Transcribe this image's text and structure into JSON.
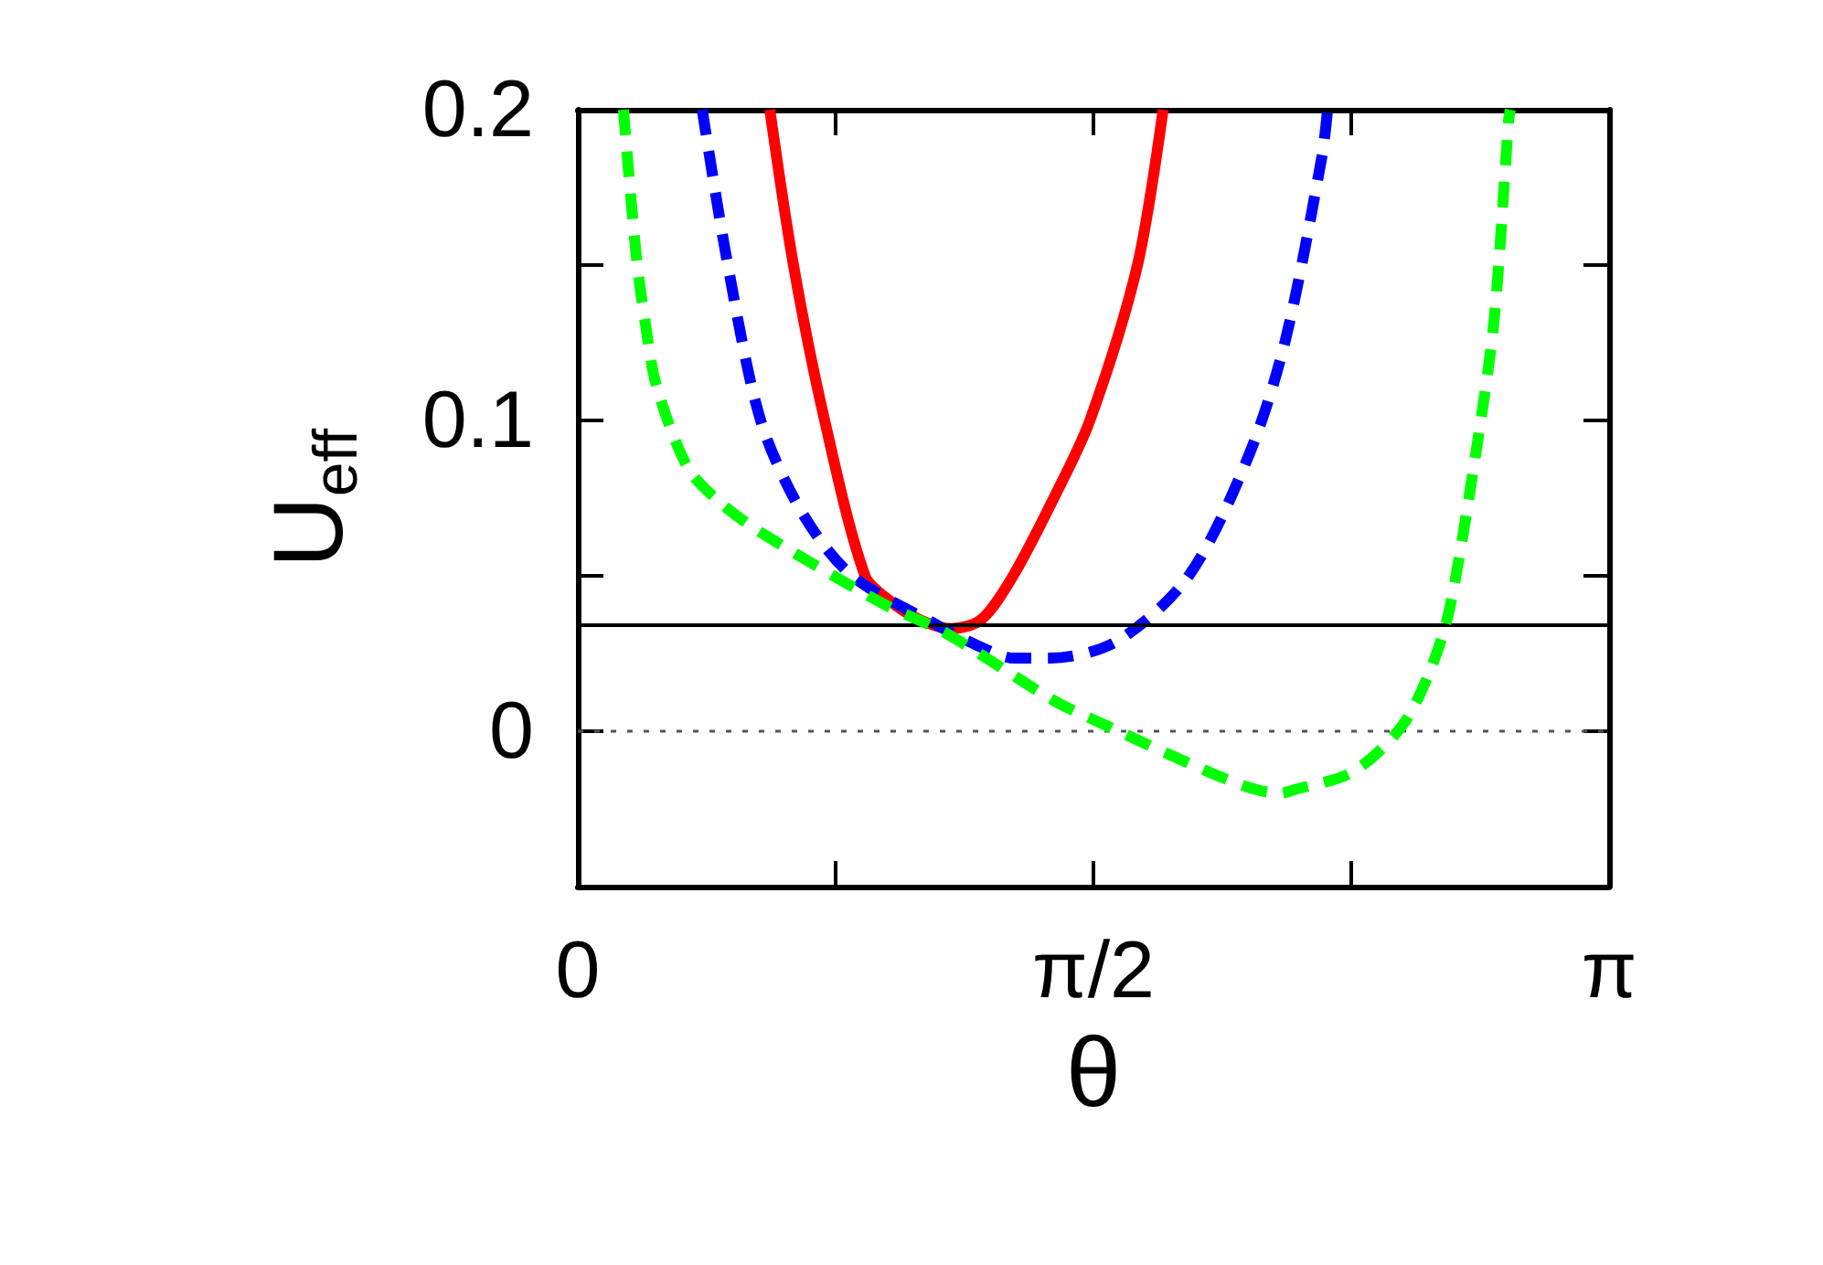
{
  "chart_data": {
    "type": "line",
    "xlabel": "θ",
    "ylabel": "U$_{eff}$",
    "xlim": [
      0,
      3.1416
    ],
    "xticks": [
      {
        "value": 0,
        "label": "0"
      },
      {
        "value": 0.7854,
        "label": null
      },
      {
        "value": 1.5708,
        "label": "π/2"
      },
      {
        "value": 2.3562,
        "label": null
      },
      {
        "value": 3.1416,
        "label": "π"
      }
    ],
    "ylim": [
      -0.05,
      0.2
    ],
    "yticks": [
      {
        "value": -0.05,
        "label": null
      },
      0,
      {
        "value": 0.05,
        "label": null
      },
      0.1,
      {
        "value": 0.15,
        "label": null
      },
      0.2
    ],
    "grid": false,
    "marker": "none",
    "series": [
      {
        "color": "#ff0000",
        "line_style": "solid",
        "x": [
          0.585,
          0.657,
          0.752,
          0.875,
          0.95,
          1.04,
          1.137,
          1.23,
          1.326,
          1.45,
          1.56,
          1.705,
          1.783
        ],
        "values": [
          0.2,
          0.15,
          0.1,
          0.05,
          0.042,
          0.036,
          0.033,
          0.036,
          0.05,
          0.075,
          0.1,
          0.15,
          0.2
        ]
      },
      {
        "color": "#0000ff",
        "line_style": "dashed",
        "x": [
          0.379,
          0.457,
          0.557,
          0.685,
          0.836,
          1.097,
          1.25,
          1.33,
          1.44,
          1.643,
          1.861,
          2.045,
          2.156,
          2.267,
          2.284
        ],
        "values": [
          0.2,
          0.15,
          0.1,
          0.07,
          0.05,
          0.034,
          0.026,
          0.0235,
          0.0235,
          0.029,
          0.05,
          0.089,
          0.126,
          0.185,
          0.2
        ]
      },
      {
        "color": "#00ff00",
        "line_style": "dashed",
        "x": [
          0.139,
          0.178,
          0.206,
          0.24,
          0.334,
          0.429,
          0.557,
          0.93,
          1.114,
          1.448,
          1.565,
          1.989,
          2.14,
          2.178,
          2.362,
          2.513,
          2.602,
          2.657,
          2.735,
          2.791,
          2.836,
          2.841
        ],
        "values": [
          0.2,
          0.153,
          0.131,
          0.111,
          0.085,
          0.074,
          0.064,
          0.041,
          0.032,
          0.01,
          0.004,
          -0.016,
          -0.02,
          -0.019,
          -0.013,
          0.002,
          0.021,
          0.04,
          0.089,
          0.132,
          0.197,
          0.2
        ]
      }
    ],
    "ref_lines": [
      {
        "axis": "y",
        "value": 0.034,
        "color": "#000000",
        "line_style": "solid"
      },
      {
        "axis": "y",
        "value": 0,
        "color": "#555555",
        "line_style": "dotted"
      }
    ]
  }
}
